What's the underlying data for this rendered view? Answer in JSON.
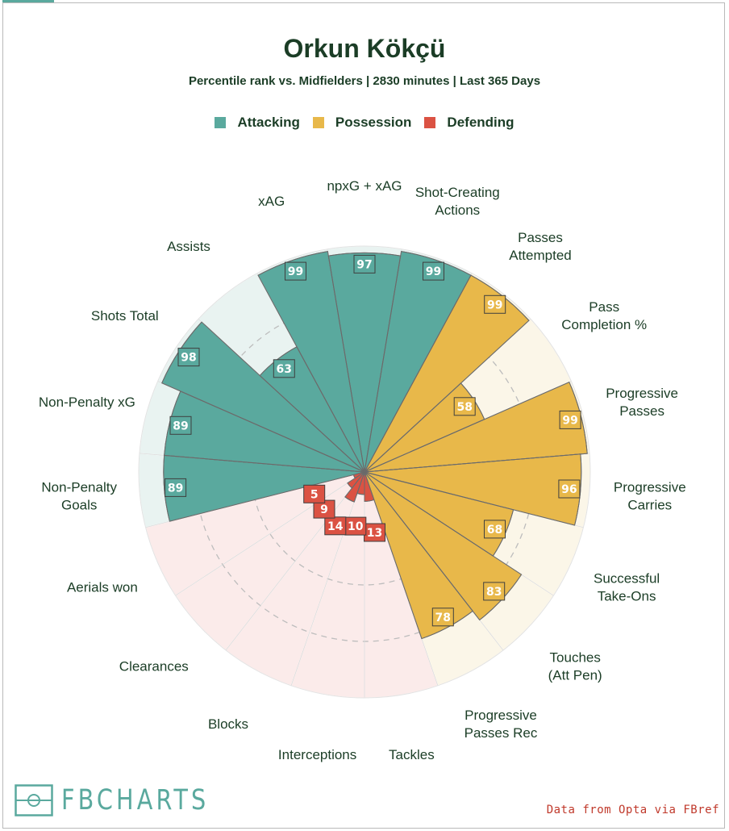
{
  "title": "Orkun Kökçü",
  "subtitle": "Percentile rank vs. Midfielders | 2830 minutes | Last 365 Days",
  "legend": [
    {
      "label": "Attacking",
      "color": "#5aa99e"
    },
    {
      "label": "Possession",
      "color": "#e8b84a"
    },
    {
      "label": "Defending",
      "color": "#db5243"
    }
  ],
  "brand": "FBCHARTS",
  "source": "Data from Opta via FBref",
  "chart_data": {
    "type": "radar-bar",
    "start_category": "npxG + xAG",
    "direction": "clockwise",
    "max": 100,
    "grid": true,
    "legend_placement": "top",
    "categories": [
      {
        "label": "npxG + xAG",
        "value": 97,
        "group": "Attacking"
      },
      {
        "label": "Shot-Creating Actions",
        "value": 99,
        "group": "Attacking"
      },
      {
        "label": "Passes Attempted",
        "value": 99,
        "group": "Possession"
      },
      {
        "label": "Pass Completion %",
        "value": 58,
        "group": "Possession"
      },
      {
        "label": "Progressive Passes",
        "value": 99,
        "group": "Possession"
      },
      {
        "label": "Progressive Carries",
        "value": 96,
        "group": "Possession"
      },
      {
        "label": "Successful Take-Ons",
        "value": 68,
        "group": "Possession"
      },
      {
        "label": "Touches (Att Pen)",
        "value": 83,
        "group": "Possession"
      },
      {
        "label": "Progressive Passes Rec",
        "value": 78,
        "group": "Possession"
      },
      {
        "label": "Tackles",
        "value": 13,
        "group": "Defending"
      },
      {
        "label": "Interceptions",
        "value": 10,
        "group": "Defending"
      },
      {
        "label": "Blocks",
        "value": 14,
        "group": "Defending"
      },
      {
        "label": "Clearances",
        "value": 9,
        "group": "Defending"
      },
      {
        "label": "Aerials won",
        "value": 5,
        "group": "Defending"
      },
      {
        "label": "Non-Penalty Goals",
        "value": 89,
        "group": "Attacking"
      },
      {
        "label": "Non-Penalty xG",
        "value": 89,
        "group": "Attacking"
      },
      {
        "label": "Shots Total",
        "value": 98,
        "group": "Attacking"
      },
      {
        "label": "Assists",
        "value": 63,
        "group": "Attacking"
      },
      {
        "label": "xAG",
        "value": 99,
        "group": "Attacking"
      }
    ],
    "group_colors": {
      "Attacking": {
        "fill": "#5aa99e",
        "bg": "#e9f3f1"
      },
      "Possession": {
        "fill": "#e8b84a",
        "bg": "#fbf6e8"
      },
      "Defending": {
        "fill": "#db5243",
        "bg": "#fbebea"
      }
    }
  }
}
